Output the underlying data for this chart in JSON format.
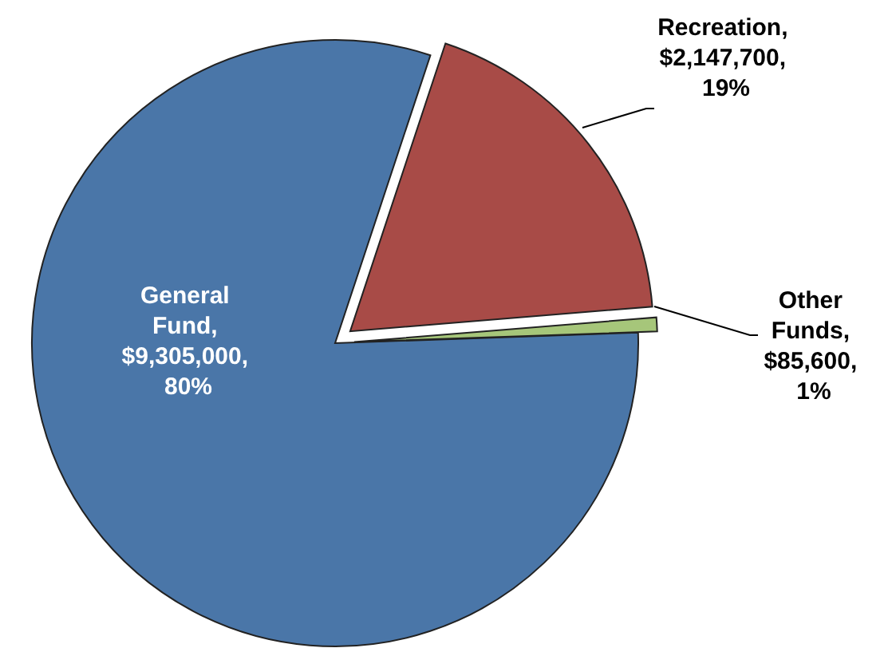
{
  "chart_data": {
    "type": "pie",
    "categories": [
      "General Fund",
      "Recreation",
      "Other Funds"
    ],
    "values": [
      9305000,
      2147700,
      85600
    ],
    "value_labels": [
      ", $9,305,000, 80%",
      ", $2,147,700, 19%",
      ", $85,600, 1%"
    ],
    "colors": [
      "#4a76a8",
      "#a84b47",
      "#a6c67a"
    ]
  }
}
